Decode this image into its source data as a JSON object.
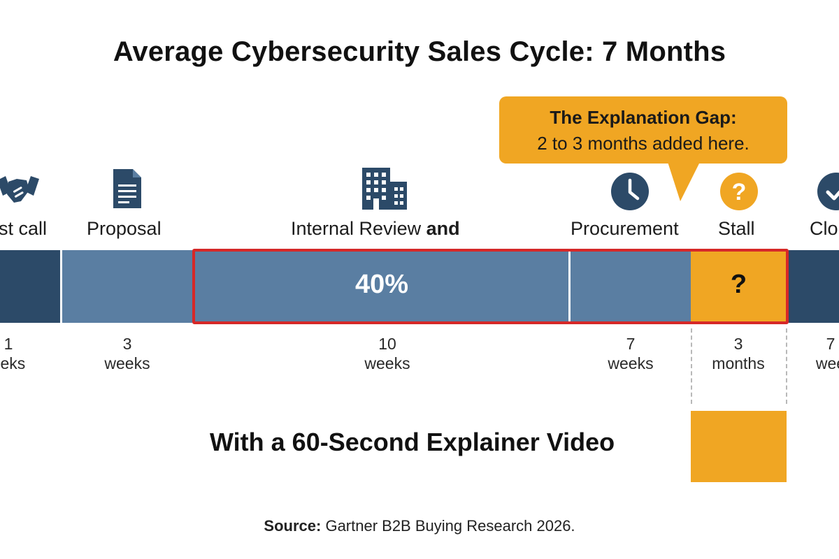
{
  "title": "Average Cybersecurity Sales Cycle: 7 Months",
  "callout": {
    "title": "The Explanation Gap:",
    "text": "2 to 3 months added here."
  },
  "stages": [
    {
      "label": "st call",
      "icon": "handshake-icon",
      "duration_value": "1",
      "duration_unit": "eeks"
    },
    {
      "label": "Proposal",
      "icon": "document-icon",
      "duration_value": "3",
      "duration_unit": "weeks"
    },
    {
      "label_regular": "Internal Review ",
      "label_bold": "and",
      "icon": "office-building-icon",
      "duration_value": "10",
      "duration_unit": "weeks",
      "bar_text": "40%"
    },
    {
      "label": "Procurement",
      "icon": "clock-icon",
      "duration_value": "7",
      "duration_unit": "weeks"
    },
    {
      "label": "Stall",
      "icon": "question-mark-icon",
      "duration_value": "3",
      "duration_unit": "months",
      "bar_text": "?"
    },
    {
      "label": "Clo",
      "icon": "checkmark-icon",
      "duration_value": "7",
      "duration_unit": "wee"
    }
  ],
  "subheading": "With a 60-Second Explainer Video",
  "source": {
    "label": "Source:",
    "text": " Gartner B2B Buying Research 2026."
  },
  "colors": {
    "dark_navy": "#2c4a68",
    "steel_blue": "#5a7ea2",
    "amber": "#f0a623",
    "highlight_red": "#d62828"
  }
}
